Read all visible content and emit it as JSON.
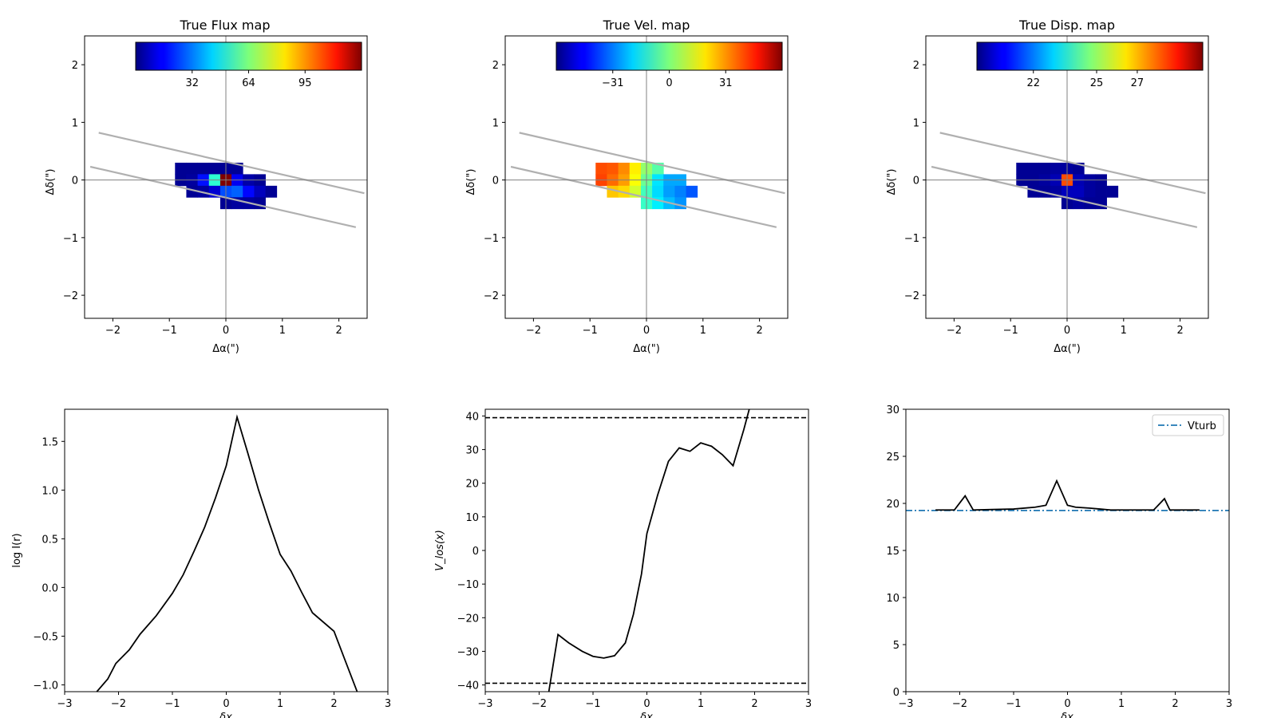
{
  "colors": {
    "frame": "#000000",
    "crosshair": "#808080",
    "slit": "#b0b0b0",
    "curve": "#000000",
    "vturb": "#1f77b4"
  },
  "chart_data": [
    {
      "type": "heatmap",
      "title": "True Flux map",
      "xlabel": "Δα(\")",
      "ylabel": "Δδ(\")",
      "xlim": [
        -2.5,
        2.5
      ],
      "ylim": [
        -2.4,
        2.5
      ],
      "xticks": [
        -2,
        -1,
        0,
        1,
        2
      ],
      "yticks": [
        -2,
        -1,
        0,
        1,
        2
      ],
      "colorbar": {
        "colormap": "jet",
        "ticks": [
          "32",
          "64",
          "95"
        ],
        "tick_fraction": [
          0.25,
          0.5,
          0.75
        ]
      },
      "slit_edges": [
        {
          "x": [
            -2.25,
            2.45
          ],
          "y": [
            0.82,
            -0.23
          ]
        },
        {
          "x": [
            -2.4,
            2.3
          ],
          "y": [
            0.23,
            -0.82
          ]
        }
      ],
      "pixel_size": 0.2,
      "pixels": [
        {
          "x": -0.8,
          "y": 0.2,
          "v": 0.02
        },
        {
          "x": -0.6,
          "y": 0.2,
          "v": 0.02
        },
        {
          "x": -0.4,
          "y": 0.2,
          "v": 0.02
        },
        {
          "x": -0.2,
          "y": 0.2,
          "v": 0.02
        },
        {
          "x": 0.0,
          "y": 0.2,
          "v": 0.02
        },
        {
          "x": 0.2,
          "y": 0.2,
          "v": 0.02
        },
        {
          "x": -0.8,
          "y": 0.0,
          "v": 0.02
        },
        {
          "x": -0.6,
          "y": 0.0,
          "v": 0.03
        },
        {
          "x": -0.4,
          "y": 0.0,
          "v": 0.14
        },
        {
          "x": -0.2,
          "y": 0.0,
          "v": 0.42
        },
        {
          "x": 0.0,
          "y": 0.0,
          "v": 1.0
        },
        {
          "x": 0.2,
          "y": 0.0,
          "v": 0.11
        },
        {
          "x": 0.4,
          "y": 0.0,
          "v": 0.04
        },
        {
          "x": 0.6,
          "y": 0.0,
          "v": 0.02
        },
        {
          "x": -0.6,
          "y": -0.2,
          "v": 0.02
        },
        {
          "x": -0.4,
          "y": -0.2,
          "v": 0.03
        },
        {
          "x": -0.2,
          "y": -0.2,
          "v": 0.08
        },
        {
          "x": 0.0,
          "y": -0.2,
          "v": 0.2
        },
        {
          "x": 0.2,
          "y": -0.2,
          "v": 0.22
        },
        {
          "x": 0.4,
          "y": -0.2,
          "v": 0.13
        },
        {
          "x": 0.6,
          "y": -0.2,
          "v": 0.06
        },
        {
          "x": 0.8,
          "y": -0.2,
          "v": 0.02
        },
        {
          "x": 0.0,
          "y": -0.4,
          "v": 0.02
        },
        {
          "x": 0.2,
          "y": -0.4,
          "v": 0.03
        },
        {
          "x": 0.4,
          "y": -0.4,
          "v": 0.03
        },
        {
          "x": 0.6,
          "y": -0.4,
          "v": 0.02
        }
      ]
    },
    {
      "type": "heatmap",
      "title": "True Vel. map",
      "xlabel": "Δα(\")",
      "ylabel": "Δδ(\")",
      "xlim": [
        -2.5,
        2.5
      ],
      "ylim": [
        -2.4,
        2.5
      ],
      "xticks": [
        -2,
        -1,
        0,
        1,
        2
      ],
      "yticks": [
        -2,
        -1,
        0,
        1,
        2
      ],
      "colorbar": {
        "colormap": "jet",
        "ticks": [
          "−31",
          "0",
          "31"
        ],
        "tick_fraction": [
          0.25,
          0.5,
          0.75
        ]
      },
      "slit_edges": [
        {
          "x": [
            -2.25,
            2.45
          ],
          "y": [
            0.82,
            -0.23
          ]
        },
        {
          "x": [
            -2.4,
            2.3
          ],
          "y": [
            0.23,
            -0.82
          ]
        }
      ],
      "pixel_size": 0.2,
      "pixels": [
        {
          "x": -0.8,
          "y": 0.2,
          "v": 0.8
        },
        {
          "x": -0.6,
          "y": 0.2,
          "v": 0.79
        },
        {
          "x": -0.4,
          "y": 0.2,
          "v": 0.74
        },
        {
          "x": -0.2,
          "y": 0.2,
          "v": 0.64
        },
        {
          "x": 0.0,
          "y": 0.2,
          "v": 0.52
        },
        {
          "x": 0.2,
          "y": 0.2,
          "v": 0.46
        },
        {
          "x": -0.8,
          "y": 0.0,
          "v": 0.81
        },
        {
          "x": -0.6,
          "y": 0.0,
          "v": 0.77
        },
        {
          "x": -0.4,
          "y": 0.0,
          "v": 0.72
        },
        {
          "x": -0.2,
          "y": 0.0,
          "v": 0.62
        },
        {
          "x": 0.0,
          "y": 0.0,
          "v": 0.48
        },
        {
          "x": 0.2,
          "y": 0.0,
          "v": 0.35
        },
        {
          "x": 0.4,
          "y": 0.0,
          "v": 0.29
        },
        {
          "x": 0.6,
          "y": 0.0,
          "v": 0.29
        },
        {
          "x": -0.6,
          "y": -0.2,
          "v": 0.68
        },
        {
          "x": -0.4,
          "y": -0.2,
          "v": 0.66
        },
        {
          "x": -0.2,
          "y": -0.2,
          "v": 0.58
        },
        {
          "x": 0.0,
          "y": -0.2,
          "v": 0.44
        },
        {
          "x": 0.2,
          "y": -0.2,
          "v": 0.34
        },
        {
          "x": 0.4,
          "y": -0.2,
          "v": 0.28
        },
        {
          "x": 0.6,
          "y": -0.2,
          "v": 0.25
        },
        {
          "x": 0.8,
          "y": -0.2,
          "v": 0.21
        },
        {
          "x": 0.0,
          "y": -0.4,
          "v": 0.43
        },
        {
          "x": 0.2,
          "y": -0.4,
          "v": 0.36
        },
        {
          "x": 0.4,
          "y": -0.4,
          "v": 0.31
        },
        {
          "x": 0.6,
          "y": -0.4,
          "v": 0.27
        }
      ]
    },
    {
      "type": "heatmap",
      "title": "True Disp. map",
      "xlabel": "Δα(\")",
      "ylabel": "Δδ(\")",
      "xlim": [
        -2.5,
        2.5
      ],
      "ylim": [
        -2.4,
        2.5
      ],
      "xticks": [
        -2,
        -1,
        0,
        1,
        2
      ],
      "yticks": [
        -2,
        -1,
        0,
        1,
        2
      ],
      "colorbar": {
        "colormap": "jet",
        "ticks": [
          "22",
          "25",
          "27"
        ],
        "tick_fraction": [
          0.25,
          0.53,
          0.71
        ]
      },
      "slit_edges": [
        {
          "x": [
            -2.25,
            2.45
          ],
          "y": [
            0.82,
            -0.23
          ]
        },
        {
          "x": [
            -2.4,
            2.3
          ],
          "y": [
            0.23,
            -0.82
          ]
        }
      ],
      "pixel_size": 0.2,
      "pixels": [
        {
          "x": -0.8,
          "y": 0.2,
          "v": 0.02
        },
        {
          "x": -0.6,
          "y": 0.2,
          "v": 0.02
        },
        {
          "x": -0.4,
          "y": 0.2,
          "v": 0.02
        },
        {
          "x": -0.2,
          "y": 0.2,
          "v": 0.03
        },
        {
          "x": 0.0,
          "y": 0.2,
          "v": 0.03
        },
        {
          "x": 0.2,
          "y": 0.2,
          "v": 0.02
        },
        {
          "x": -0.8,
          "y": 0.0,
          "v": 0.02
        },
        {
          "x": -0.6,
          "y": 0.0,
          "v": 0.02
        },
        {
          "x": -0.4,
          "y": 0.0,
          "v": 0.03
        },
        {
          "x": -0.2,
          "y": 0.0,
          "v": 0.05
        },
        {
          "x": 0.0,
          "y": 0.0,
          "v": 0.8
        },
        {
          "x": 0.2,
          "y": 0.0,
          "v": 0.05
        },
        {
          "x": 0.4,
          "y": 0.0,
          "v": 0.03
        },
        {
          "x": 0.6,
          "y": 0.0,
          "v": 0.02
        },
        {
          "x": -0.6,
          "y": -0.2,
          "v": 0.02
        },
        {
          "x": -0.4,
          "y": -0.2,
          "v": 0.02
        },
        {
          "x": -0.2,
          "y": -0.2,
          "v": 0.03
        },
        {
          "x": 0.0,
          "y": -0.2,
          "v": 0.06
        },
        {
          "x": 0.2,
          "y": -0.2,
          "v": 0.06
        },
        {
          "x": 0.4,
          "y": -0.2,
          "v": 0.03
        },
        {
          "x": 0.6,
          "y": -0.2,
          "v": 0.02
        },
        {
          "x": 0.8,
          "y": -0.2,
          "v": 0.02
        },
        {
          "x": 0.0,
          "y": -0.4,
          "v": 0.02
        },
        {
          "x": 0.2,
          "y": -0.4,
          "v": 0.03
        },
        {
          "x": 0.4,
          "y": -0.4,
          "v": 0.02
        },
        {
          "x": 0.6,
          "y": -0.4,
          "v": 0.02
        }
      ]
    },
    {
      "type": "line",
      "title": "",
      "xlabel": "δx",
      "ylabel": "log I(r)",
      "xlim": [
        -3,
        3
      ],
      "ylim": [
        -1.07,
        1.83
      ],
      "xticks": [
        -3,
        -2,
        -1,
        0,
        1,
        2,
        3
      ],
      "yticks": [
        -1.0,
        -0.5,
        0.0,
        0.5,
        1.0,
        1.5
      ],
      "ytick_labels": [
        "−1.0",
        "−0.5",
        "0.0",
        "0.5",
        "1.0",
        "1.5"
      ],
      "series": [
        {
          "x": [
            -2.45,
            -2.2,
            -2.05,
            -1.8,
            -1.6,
            -1.3,
            -1.0,
            -0.8,
            -0.6,
            -0.4,
            -0.2,
            0.0,
            0.2,
            0.4,
            0.6,
            0.8,
            1.0,
            1.2,
            1.4,
            1.6,
            2.0,
            2.2,
            2.45
          ],
          "y": [
            -1.1,
            -0.94,
            -0.78,
            -0.64,
            -0.48,
            -0.29,
            -0.06,
            0.13,
            0.37,
            0.62,
            0.92,
            1.25,
            1.75,
            1.38,
            1.0,
            0.66,
            0.34,
            0.17,
            -0.05,
            -0.26,
            -0.45,
            -0.74,
            -1.1
          ]
        }
      ]
    },
    {
      "type": "line",
      "title": "",
      "xlabel": "δx",
      "ylabel": "V_los(x)",
      "xlim": [
        -3,
        3
      ],
      "ylim": [
        -42,
        42
      ],
      "xticks": [
        -3,
        -2,
        -1,
        0,
        1,
        2,
        3
      ],
      "yticks": [
        -40,
        -30,
        -20,
        -10,
        0,
        10,
        20,
        30,
        40
      ],
      "ytick_labels": [
        "−40",
        "−30",
        "−20",
        "−10",
        "0",
        "10",
        "20",
        "30",
        "40"
      ],
      "reference_lines": [
        39.5,
        -39.5
      ],
      "series": [
        {
          "x": [
            -1.82,
            -1.65,
            -1.45,
            -1.2,
            -1.0,
            -0.8,
            -0.6,
            -0.4,
            -0.25,
            -0.1,
            0.0,
            0.2,
            0.4,
            0.6,
            0.8,
            1.0,
            1.2,
            1.4,
            1.6,
            1.8,
            1.9
          ],
          "y": [
            -42,
            -25,
            -27.5,
            -30.0,
            -31.5,
            -32.0,
            -31.3,
            -27.5,
            -19.0,
            -7.0,
            5.0,
            16.5,
            26.5,
            30.5,
            29.5,
            32.0,
            31.0,
            28.5,
            25.2,
            36.0,
            42
          ]
        }
      ]
    },
    {
      "type": "line",
      "title": "",
      "xlabel": "δx",
      "ylabel": "",
      "xlim": [
        -3,
        3
      ],
      "ylim": [
        0,
        30
      ],
      "xticks": [
        -3,
        -2,
        -1,
        0,
        1,
        2,
        3
      ],
      "yticks": [
        0,
        5,
        10,
        15,
        20,
        25,
        30
      ],
      "ytick_labels": [
        "0",
        "5",
        "10",
        "15",
        "20",
        "25",
        "30"
      ],
      "legend": {
        "position": "top-right",
        "entries": [
          "Vturb"
        ]
      },
      "reference_lines": [
        19.25
      ],
      "series": [
        {
          "x": [
            -2.45,
            -2.1,
            -1.9,
            -1.75,
            -1.4,
            -1.0,
            -0.6,
            -0.4,
            -0.2,
            0.0,
            0.15,
            0.4,
            0.6,
            0.8,
            1.2,
            1.6,
            1.8,
            1.9,
            2.1,
            2.45
          ],
          "y": [
            19.3,
            19.3,
            20.8,
            19.3,
            19.35,
            19.4,
            19.6,
            19.8,
            22.4,
            19.8,
            19.6,
            19.5,
            19.4,
            19.3,
            19.3,
            19.3,
            20.5,
            19.3,
            19.3,
            19.3
          ]
        }
      ]
    }
  ]
}
